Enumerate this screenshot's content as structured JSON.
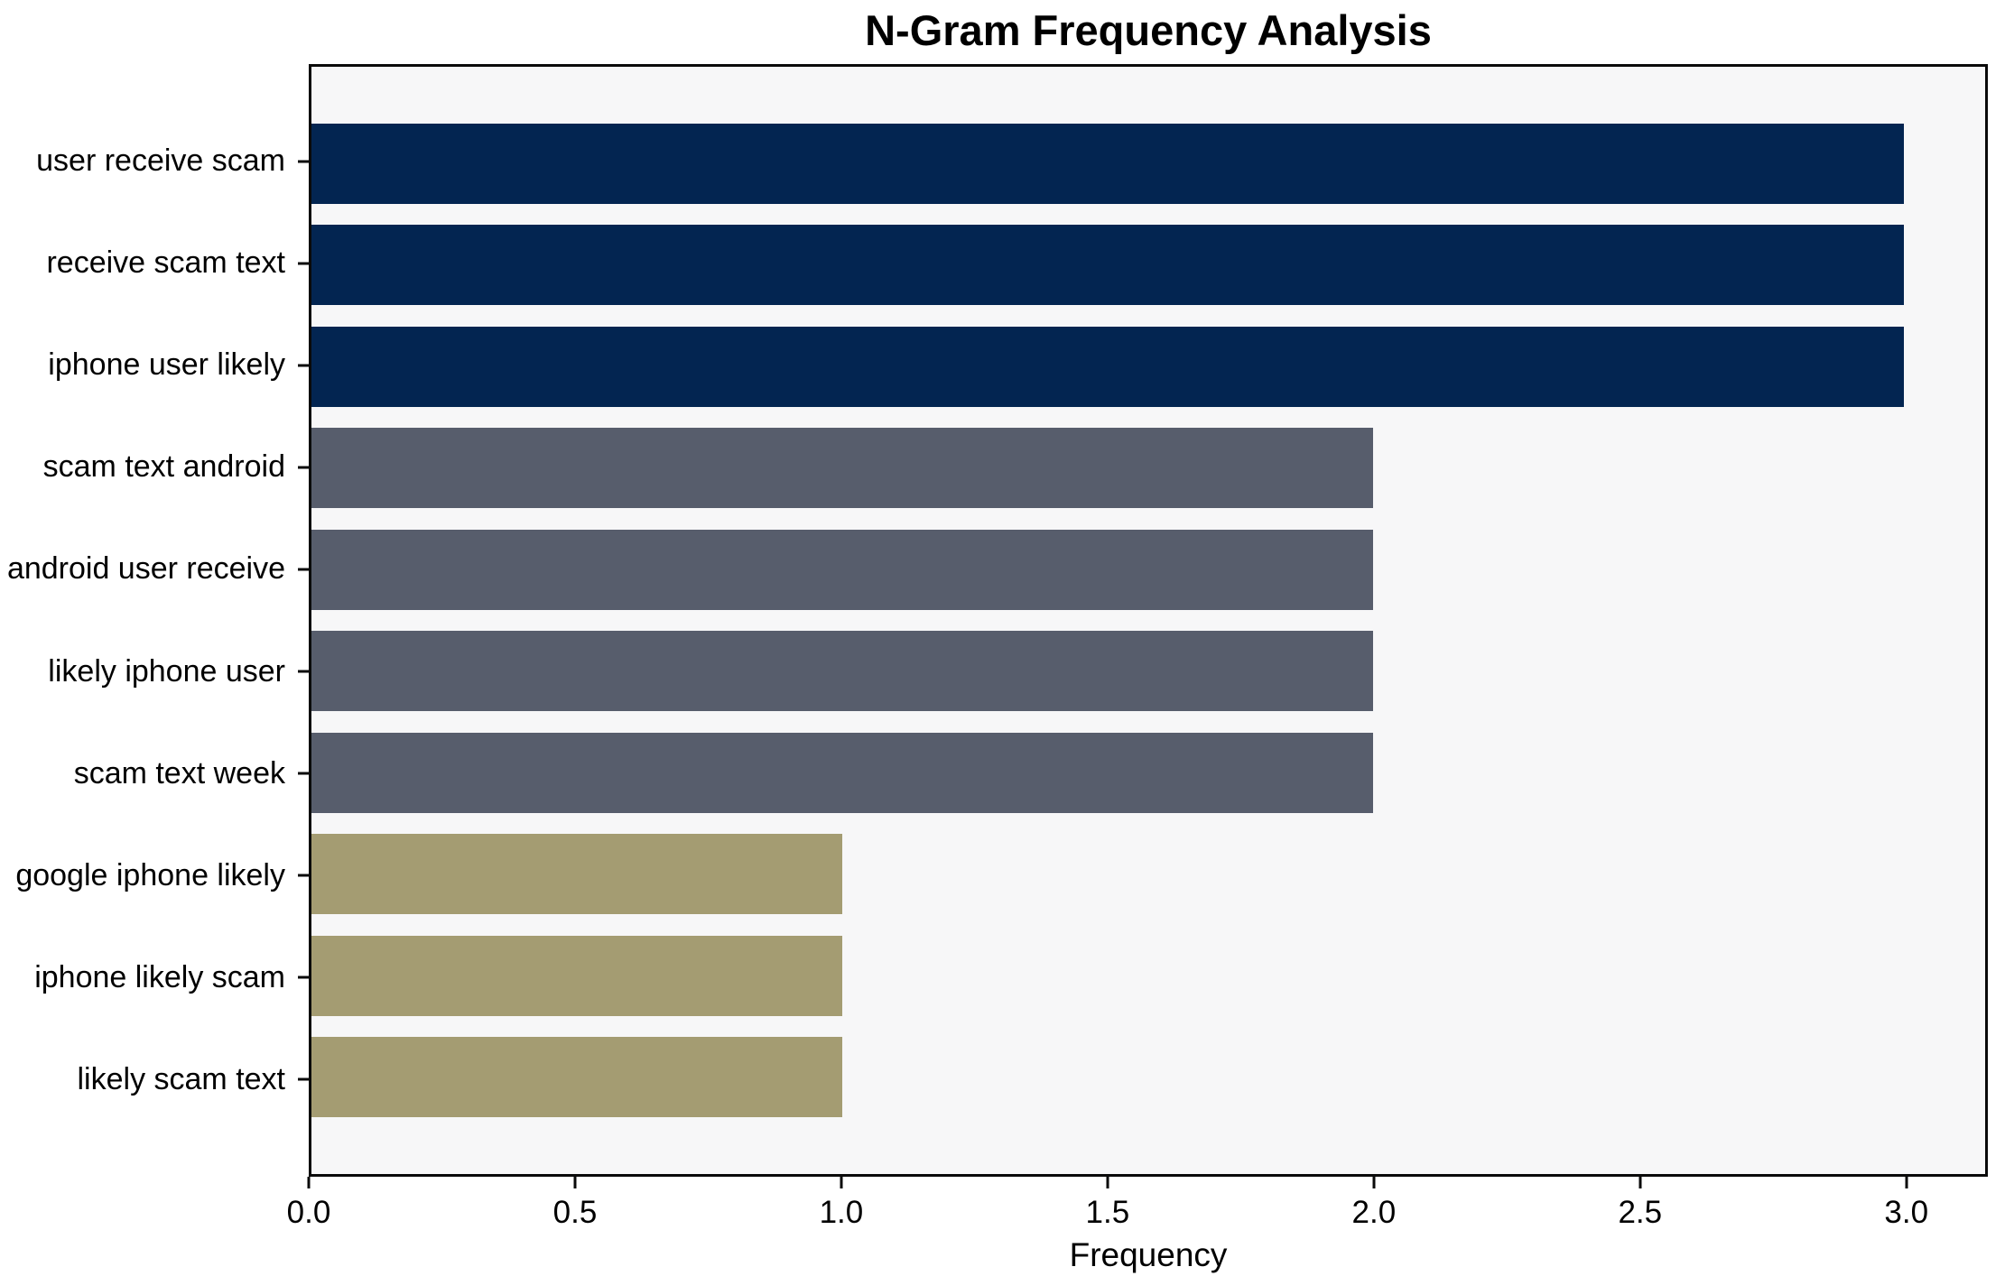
{
  "chart_data": {
    "type": "bar",
    "orientation": "horizontal",
    "title": "N-Gram Frequency Analysis",
    "xlabel": "Frequency",
    "ylabel": "",
    "categories": [
      "user receive scam",
      "receive scam text",
      "iphone user likely",
      "scam text android",
      "android user receive",
      "likely iphone user",
      "scam text week",
      "google iphone likely",
      "iphone likely scam",
      "likely scam text"
    ],
    "values": [
      3,
      3,
      3,
      2,
      2,
      2,
      2,
      1,
      1,
      1
    ],
    "bar_colors": [
      "#032551",
      "#032551",
      "#032551",
      "#575d6c",
      "#575d6c",
      "#575d6c",
      "#575d6c",
      "#a49c72",
      "#a49c72",
      "#a49c72"
    ],
    "xlim": [
      0,
      3.153
    ],
    "xticks": [
      {
        "value": 0.0,
        "label": "0.0"
      },
      {
        "value": 0.5,
        "label": "0.5"
      },
      {
        "value": 1.0,
        "label": "1.0"
      },
      {
        "value": 1.5,
        "label": "1.5"
      },
      {
        "value": 2.0,
        "label": "2.0"
      },
      {
        "value": 2.5,
        "label": "2.5"
      },
      {
        "value": 3.0,
        "label": "3.0"
      }
    ],
    "grid": false,
    "legend_position": "none",
    "colors": {
      "high_frequency": "#032551",
      "mid_frequency": "#575d6c",
      "low_frequency": "#a49c72",
      "plot_background": "#f7f7f8",
      "figure_background": "#ffffff",
      "spine": "#0a0a0a",
      "text": "#000000"
    }
  }
}
